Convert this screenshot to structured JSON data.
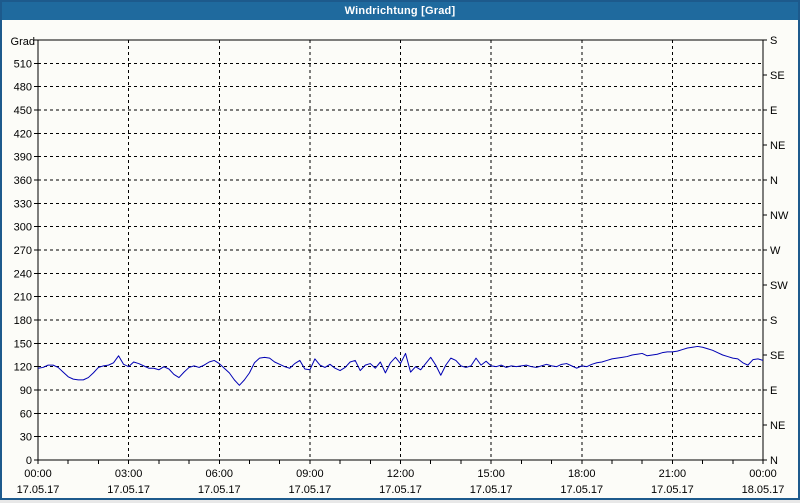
{
  "window": {
    "title": "Windrichtung [Grad]"
  },
  "colors": {
    "titlebar_bg": "#1f6a9e",
    "window_border": "#1d5a8c",
    "content_bg": "#fcfcf8",
    "plot_border": "#000000",
    "grid": "#000000",
    "line": "#0000b4",
    "label": "#000000",
    "title_text": "#ffffff"
  },
  "chart_data": {
    "type": "line",
    "title": "Windrichtung [Grad]",
    "ylabel": "Grad",
    "ylim": [
      0,
      540
    ],
    "xlim_hours": [
      0,
      24
    ],
    "grid": "dashed",
    "y_axis": {
      "unit_label": "Grad",
      "grid_step": 30,
      "tick_labels": [
        "0",
        "30",
        "60",
        "90",
        "120",
        "150",
        "180",
        "210",
        "240",
        "270",
        "300",
        "330",
        "360",
        "390",
        "420",
        "450",
        "480",
        "510"
      ]
    },
    "right_axis": {
      "step_degrees": 45,
      "labels_bottom_to_top": [
        "N",
        "NE",
        "E",
        "SE",
        "S",
        "SW",
        "W",
        "NW",
        "N",
        "NE",
        "E",
        "SE",
        "S"
      ]
    },
    "x_axis": {
      "major_step_hours": 3,
      "minor_tick_hours": 1,
      "ticks": [
        {
          "time": "00:00",
          "date": "17.05.17"
        },
        {
          "time": "03:00",
          "date": "17.05.17"
        },
        {
          "time": "06:00",
          "date": "17.05.17"
        },
        {
          "time": "09:00",
          "date": "17.05.17"
        },
        {
          "time": "12:00",
          "date": "17.05.17"
        },
        {
          "time": "15:00",
          "date": "17.05.17"
        },
        {
          "time": "18:00",
          "date": "17.05.17"
        },
        {
          "time": "21:00",
          "date": "17.05.17"
        },
        {
          "time": "00:00",
          "date": "18.05.17"
        }
      ]
    },
    "series": [
      {
        "name": "Windrichtung",
        "interval_minutes": 10,
        "start": "00:00",
        "values": [
          118,
          119,
          122,
          122,
          119,
          113,
          107,
          104,
          103,
          103,
          106,
          112,
          119,
          121,
          122,
          125,
          134,
          123,
          120,
          126,
          124,
          121,
          118,
          118,
          116,
          120,
          117,
          110,
          106,
          113,
          119,
          121,
          119,
          122,
          126,
          128,
          124,
          118,
          112,
          103,
          96,
          103,
          112,
          125,
          131,
          132,
          131,
          126,
          123,
          120,
          118,
          124,
          128,
          117,
          116,
          130,
          122,
          119,
          123,
          118,
          115,
          119,
          126,
          128,
          115,
          122,
          124,
          118,
          126,
          112,
          125,
          132,
          124,
          137,
          113,
          120,
          116,
          124,
          132,
          122,
          109,
          122,
          131,
          128,
          121,
          119,
          121,
          131,
          122,
          127,
          121,
          120,
          122,
          119,
          121,
          120,
          121,
          122,
          120,
          119,
          121,
          123,
          121,
          120,
          123,
          124,
          121,
          118,
          121,
          120,
          123,
          125,
          126,
          128,
          130,
          131,
          132,
          133,
          135,
          136,
          137,
          134,
          135,
          136,
          138,
          139,
          139,
          140,
          142,
          144,
          145,
          146,
          145,
          143,
          141,
          138,
          135,
          133,
          131,
          130,
          125,
          122,
          129,
          130,
          128
        ]
      }
    ]
  }
}
